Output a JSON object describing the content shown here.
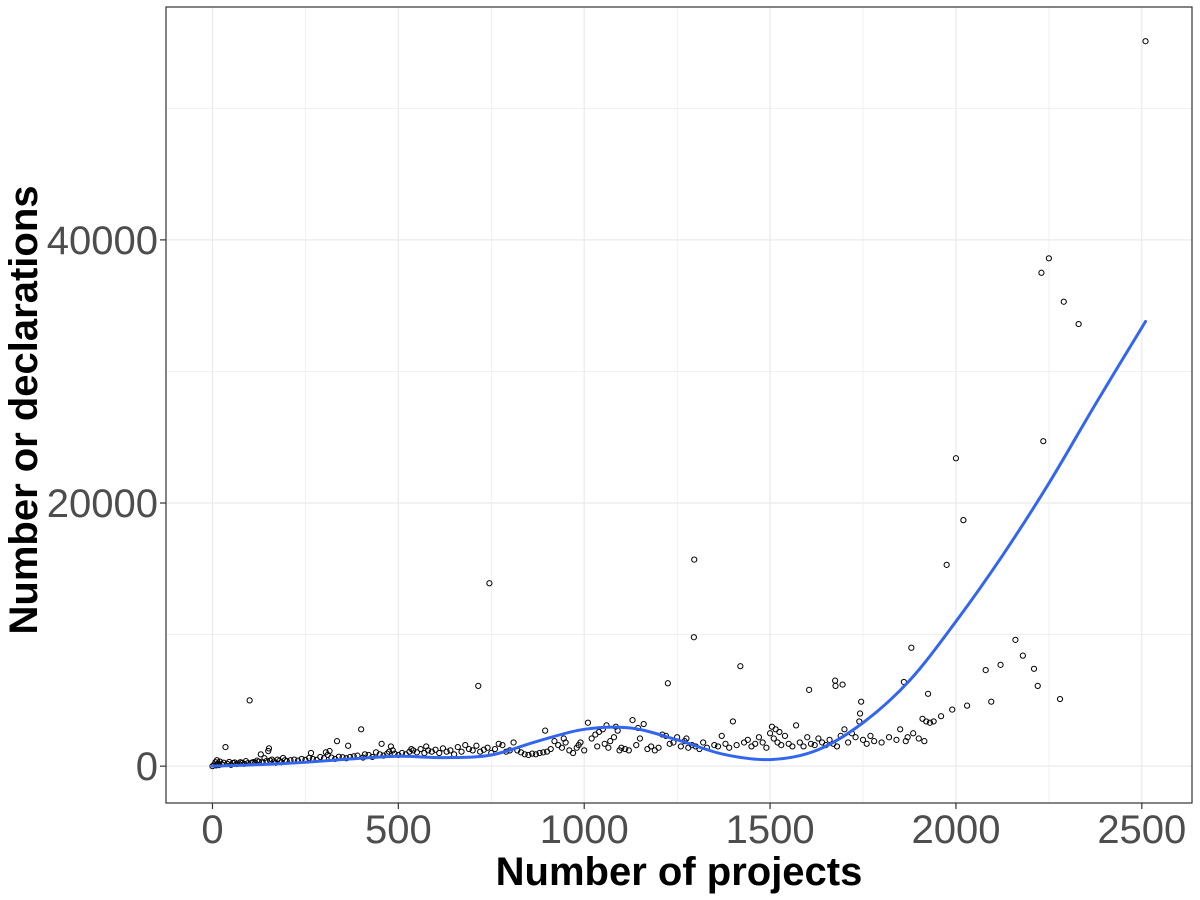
{
  "chart_data": {
    "type": "scatter",
    "title": "",
    "xlabel": "Number of projects",
    "ylabel": "Number or declarations",
    "xlim": [
      -125,
      2635
    ],
    "ylim": [
      -2800,
      57700
    ],
    "x_ticks": [
      0,
      500,
      1000,
      1500,
      2000,
      2500
    ],
    "x_tick_labels": [
      "0",
      "500",
      "1000",
      "1500",
      "2000",
      "2500"
    ],
    "x_minor_ticks": [
      250,
      750,
      1250,
      1750,
      2250
    ],
    "y_ticks": [
      0,
      20000,
      40000
    ],
    "y_tick_labels": [
      "0",
      "20000",
      "40000"
    ],
    "y_minor_ticks": [
      10000,
      30000,
      50000
    ],
    "grid": true,
    "legend": "none",
    "colors": {
      "points": "#000000",
      "smooth": "#3366ee",
      "grid": "#ebebeb",
      "panel_border": "#333333",
      "tick_label": "#4d4d4d"
    },
    "series": [
      {
        "type": "scatter",
        "points": [
          [
            0,
            0
          ],
          [
            5,
            120
          ],
          [
            8,
            300
          ],
          [
            10,
            60
          ],
          [
            12,
            450
          ],
          [
            15,
            200
          ],
          [
            18,
            80
          ],
          [
            20,
            350
          ],
          [
            25,
            150
          ],
          [
            30,
            260
          ],
          [
            35,
            1450
          ],
          [
            40,
            180
          ],
          [
            45,
            320
          ],
          [
            50,
            100
          ],
          [
            55,
            240
          ],
          [
            60,
            280
          ],
          [
            65,
            160
          ],
          [
            70,
            200
          ],
          [
            75,
            300
          ],
          [
            80,
            250
          ],
          [
            85,
            180
          ],
          [
            90,
            380
          ],
          [
            95,
            220
          ],
          [
            100,
            5000
          ],
          [
            105,
            260
          ],
          [
            110,
            310
          ],
          [
            115,
            280
          ],
          [
            120,
            420
          ],
          [
            125,
            350
          ],
          [
            130,
            900
          ],
          [
            135,
            300
          ],
          [
            140,
            600
          ],
          [
            145,
            380
          ],
          [
            150,
            1150
          ],
          [
            152,
            1350
          ],
          [
            155,
            420
          ],
          [
            160,
            500
          ],
          [
            165,
            350
          ],
          [
            170,
            260
          ],
          [
            175,
            500
          ],
          [
            180,
            400
          ],
          [
            185,
            300
          ],
          [
            190,
            620
          ],
          [
            195,
            450
          ],
          [
            200,
            380
          ],
          [
            210,
            450
          ],
          [
            220,
            500
          ],
          [
            230,
            420
          ],
          [
            240,
            550
          ],
          [
            250,
            480
          ],
          [
            260,
            620
          ],
          [
            265,
            1000
          ],
          [
            270,
            550
          ],
          [
            280,
            480
          ],
          [
            290,
            700
          ],
          [
            300,
            600
          ],
          [
            305,
            1050
          ],
          [
            310,
            850
          ],
          [
            315,
            1150
          ],
          [
            320,
            650
          ],
          [
            330,
            550
          ],
          [
            335,
            1900
          ],
          [
            340,
            720
          ],
          [
            350,
            680
          ],
          [
            360,
            600
          ],
          [
            365,
            1550
          ],
          [
            370,
            700
          ],
          [
            380,
            750
          ],
          [
            390,
            800
          ],
          [
            400,
            2800
          ],
          [
            405,
            650
          ],
          [
            410,
            900
          ],
          [
            420,
            850
          ],
          [
            430,
            700
          ],
          [
            440,
            1050
          ],
          [
            450,
            900
          ],
          [
            455,
            1700
          ],
          [
            460,
            800
          ],
          [
            470,
            950
          ],
          [
            475,
            1100
          ],
          [
            480,
            1500
          ],
          [
            485,
            1200
          ],
          [
            490,
            950
          ],
          [
            500,
            850
          ],
          [
            510,
            1000
          ],
          [
            520,
            900
          ],
          [
            530,
            1100
          ],
          [
            535,
            1300
          ],
          [
            540,
            1200
          ],
          [
            550,
            1050
          ],
          [
            560,
            1300
          ],
          [
            570,
            1000
          ],
          [
            575,
            1500
          ],
          [
            580,
            1200
          ],
          [
            590,
            1100
          ],
          [
            600,
            1250
          ],
          [
            610,
            1000
          ],
          [
            620,
            1350
          ],
          [
            630,
            1100
          ],
          [
            640,
            1200
          ],
          [
            650,
            900
          ],
          [
            660,
            1450
          ],
          [
            670,
            1100
          ],
          [
            680,
            1600
          ],
          [
            690,
            1300
          ],
          [
            700,
            1200
          ],
          [
            710,
            1550
          ],
          [
            715,
            6100
          ],
          [
            720,
            1100
          ],
          [
            730,
            1250
          ],
          [
            740,
            1400
          ],
          [
            745,
            13900
          ],
          [
            750,
            1000
          ],
          [
            760,
            1300
          ],
          [
            770,
            1700
          ],
          [
            780,
            1600
          ],
          [
            790,
            1100
          ],
          [
            800,
            1200
          ],
          [
            810,
            1800
          ],
          [
            820,
            1200
          ],
          [
            830,
            1050
          ],
          [
            840,
            900
          ],
          [
            850,
            850
          ],
          [
            860,
            950
          ],
          [
            870,
            900
          ],
          [
            880,
            1000
          ],
          [
            890,
            1050
          ],
          [
            895,
            2700
          ],
          [
            900,
            1100
          ],
          [
            910,
            1300
          ],
          [
            920,
            1900
          ],
          [
            930,
            1600
          ],
          [
            940,
            1400
          ],
          [
            945,
            2100
          ],
          [
            950,
            1800
          ],
          [
            960,
            1200
          ],
          [
            970,
            1000
          ],
          [
            980,
            1400
          ],
          [
            985,
            1600
          ],
          [
            990,
            1800
          ],
          [
            1000,
            1200
          ],
          [
            1010,
            3300
          ],
          [
            1020,
            2100
          ],
          [
            1030,
            2400
          ],
          [
            1035,
            1500
          ],
          [
            1040,
            2600
          ],
          [
            1050,
            2800
          ],
          [
            1055,
            1700
          ],
          [
            1060,
            3100
          ],
          [
            1065,
            1400
          ],
          [
            1070,
            1900
          ],
          [
            1080,
            2200
          ],
          [
            1085,
            3000
          ],
          [
            1090,
            2700
          ],
          [
            1095,
            1200
          ],
          [
            1100,
            1400
          ],
          [
            1110,
            1300
          ],
          [
            1120,
            1200
          ],
          [
            1130,
            3500
          ],
          [
            1140,
            1600
          ],
          [
            1145,
            2900
          ],
          [
            1150,
            2100
          ],
          [
            1160,
            3200
          ],
          [
            1170,
            1300
          ],
          [
            1180,
            1500
          ],
          [
            1190,
            1200
          ],
          [
            1200,
            1400
          ],
          [
            1210,
            2400
          ],
          [
            1220,
            2300
          ],
          [
            1225,
            6300
          ],
          [
            1230,
            1700
          ],
          [
            1240,
            1800
          ],
          [
            1250,
            2200
          ],
          [
            1260,
            1500
          ],
          [
            1270,
            1900
          ],
          [
            1275,
            2100
          ],
          [
            1280,
            1400
          ],
          [
            1290,
            1600
          ],
          [
            1295,
            9800
          ],
          [
            1296,
            15700
          ],
          [
            1300,
            1500
          ],
          [
            1310,
            1300
          ],
          [
            1320,
            1800
          ],
          [
            1330,
            1400
          ],
          [
            1350,
            1600
          ],
          [
            1360,
            1500
          ],
          [
            1370,
            2300
          ],
          [
            1380,
            1700
          ],
          [
            1390,
            1400
          ],
          [
            1400,
            3400
          ],
          [
            1410,
            1600
          ],
          [
            1420,
            7600
          ],
          [
            1430,
            1800
          ],
          [
            1440,
            2000
          ],
          [
            1450,
            1500
          ],
          [
            1460,
            1700
          ],
          [
            1470,
            2200
          ],
          [
            1480,
            1800
          ],
          [
            1490,
            1400
          ],
          [
            1500,
            2500
          ],
          [
            1505,
            3000
          ],
          [
            1510,
            2100
          ],
          [
            1515,
            2800
          ],
          [
            1520,
            1800
          ],
          [
            1525,
            2600
          ],
          [
            1530,
            1600
          ],
          [
            1540,
            2300
          ],
          [
            1550,
            1700
          ],
          [
            1560,
            1500
          ],
          [
            1570,
            3100
          ],
          [
            1580,
            1800
          ],
          [
            1590,
            1500
          ],
          [
            1600,
            2200
          ],
          [
            1605,
            5800
          ],
          [
            1610,
            1700
          ],
          [
            1620,
            1600
          ],
          [
            1630,
            2100
          ],
          [
            1640,
            1800
          ],
          [
            1650,
            1600
          ],
          [
            1660,
            2000
          ],
          [
            1670,
            1700
          ],
          [
            1675,
            6500
          ],
          [
            1676,
            6100
          ],
          [
            1680,
            1500
          ],
          [
            1690,
            2300
          ],
          [
            1695,
            6200
          ],
          [
            1700,
            2800
          ],
          [
            1710,
            1800
          ],
          [
            1720,
            2500
          ],
          [
            1730,
            2200
          ],
          [
            1740,
            3400
          ],
          [
            1742,
            4000
          ],
          [
            1745,
            4900
          ],
          [
            1750,
            2000
          ],
          [
            1760,
            1700
          ],
          [
            1770,
            2300
          ],
          [
            1780,
            1900
          ],
          [
            1800,
            1800
          ],
          [
            1820,
            2200
          ],
          [
            1840,
            2000
          ],
          [
            1850,
            2800
          ],
          [
            1860,
            6400
          ],
          [
            1865,
            1900
          ],
          [
            1870,
            2200
          ],
          [
            1880,
            9000
          ],
          [
            1885,
            2500
          ],
          [
            1900,
            2100
          ],
          [
            1910,
            3600
          ],
          [
            1915,
            1900
          ],
          [
            1920,
            3400
          ],
          [
            1925,
            5500
          ],
          [
            1930,
            3300
          ],
          [
            1940,
            3400
          ],
          [
            1960,
            3800
          ],
          [
            1975,
            15300
          ],
          [
            1990,
            4300
          ],
          [
            2000,
            23400
          ],
          [
            2020,
            18700
          ],
          [
            2030,
            4600
          ],
          [
            2080,
            7300
          ],
          [
            2095,
            4900
          ],
          [
            2120,
            7700
          ],
          [
            2160,
            9600
          ],
          [
            2180,
            8400
          ],
          [
            2210,
            7400
          ],
          [
            2220,
            6100
          ],
          [
            2230,
            37500
          ],
          [
            2235,
            24700
          ],
          [
            2250,
            38600
          ],
          [
            2280,
            5100
          ],
          [
            2290,
            35300
          ],
          [
            2330,
            33600
          ],
          [
            2510,
            55100
          ]
        ]
      },
      {
        "type": "line",
        "x": [
          0,
          125,
          250,
          375,
          500,
          625,
          750,
          875,
          1000,
          1125,
          1250,
          1375,
          1500,
          1625,
          1750,
          1875,
          2000,
          2125,
          2250,
          2375,
          2510
        ],
        "values": [
          0,
          120,
          300,
          550,
          750,
          650,
          850,
          1900,
          2800,
          2900,
          2000,
          900,
          500,
          1200,
          3300,
          6500,
          11000,
          16000,
          21500,
          27500,
          33800
        ]
      }
    ]
  }
}
